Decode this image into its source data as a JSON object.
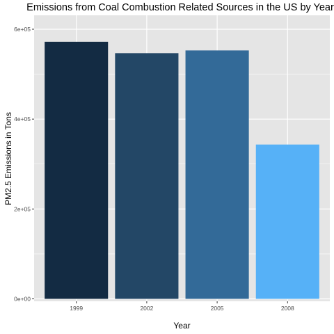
{
  "chart_data": {
    "type": "bar",
    "title": "Emissions from Coal Combustion Related Sources in the US by Year",
    "xlabel": "Year",
    "ylabel": "PM2.5 Emissions in Tons",
    "categories": [
      "1999",
      "2002",
      "2005",
      "2008"
    ],
    "values": [
      572126,
      546789,
      552881,
      343432
    ],
    "ylim": [
      0,
      600000
    ],
    "yticks": [
      {
        "value": 0,
        "label": "0e+00"
      },
      {
        "value": 200000,
        "label": "2e+05"
      },
      {
        "value": 400000,
        "label": "4e+05"
      },
      {
        "value": 600000,
        "label": "6e+05"
      }
    ],
    "bar_colors": [
      "#132B43",
      "#234766",
      "#336A98",
      "#56B1F7"
    ],
    "panel_background": "#E5E5E5",
    "grid": true,
    "grid_color": "#FFFFFF",
    "legend": "none"
  }
}
